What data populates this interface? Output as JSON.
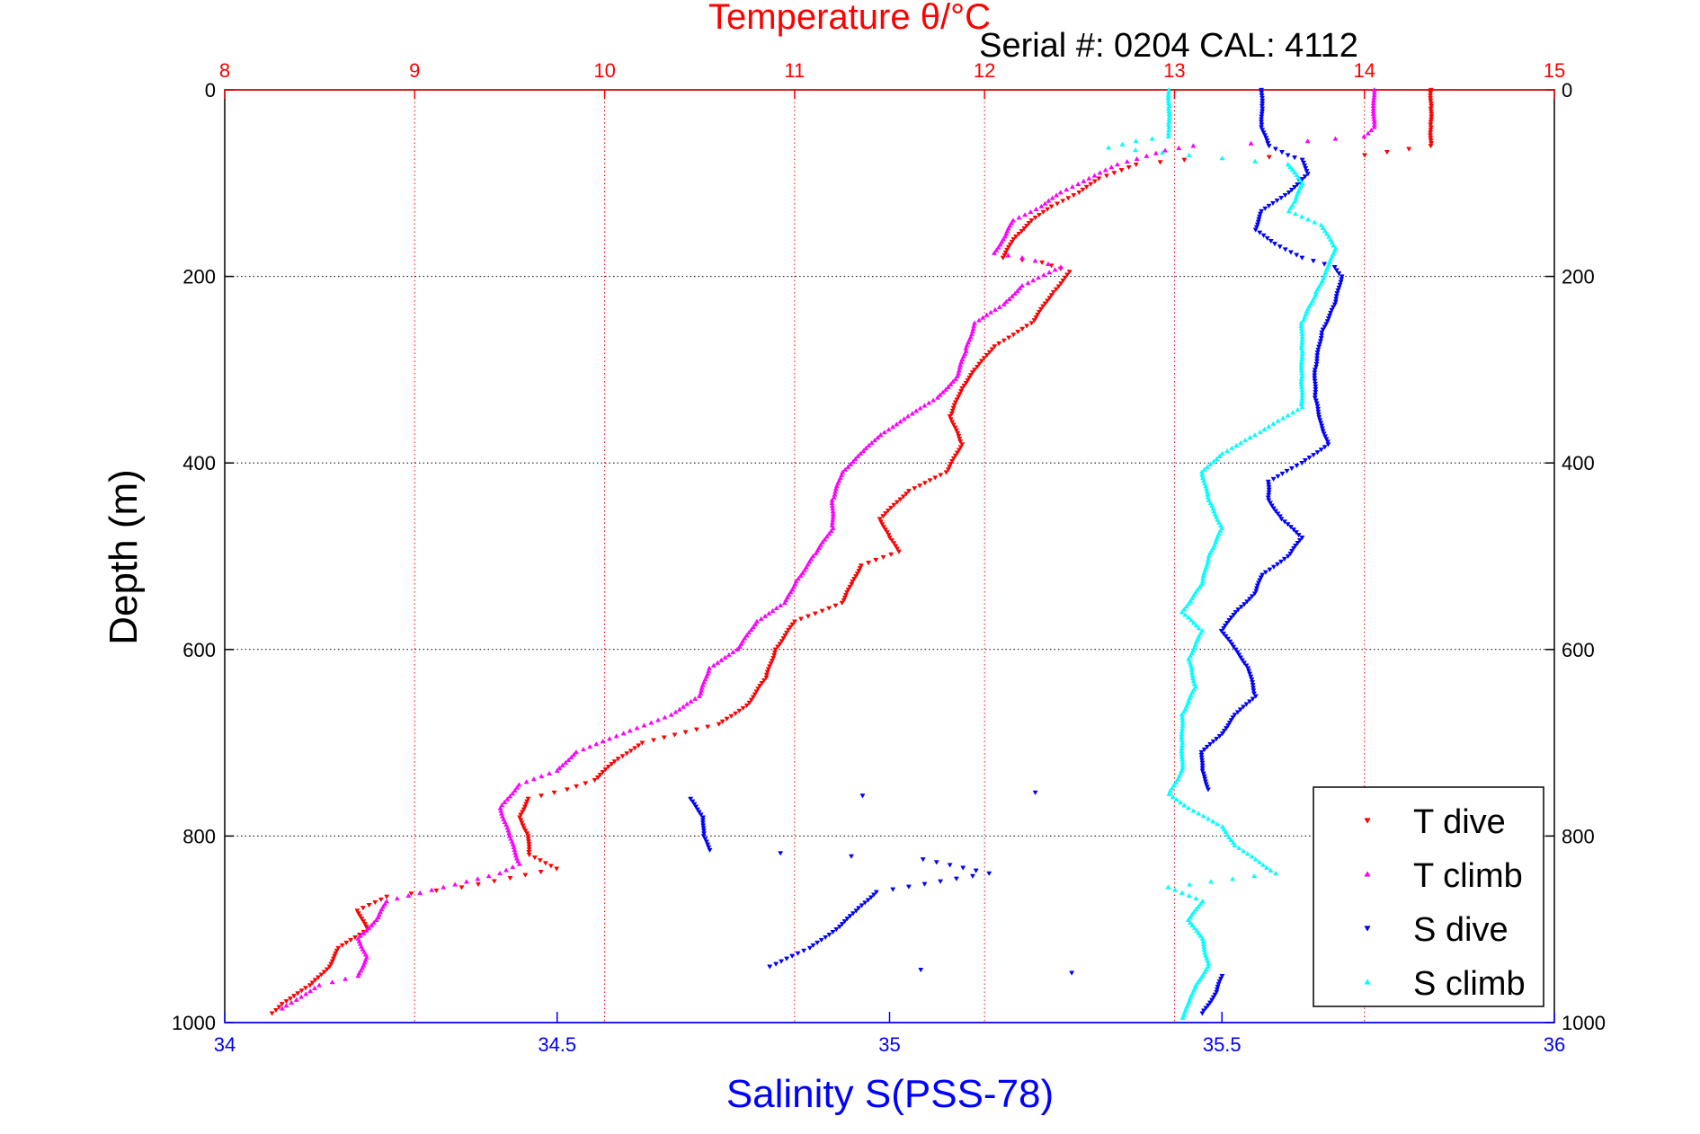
{
  "chart_data": {
    "type": "scatter",
    "title": "Temperature θ/°C",
    "subtitle": "Serial #: 0204  CAL: 4112",
    "xlabel": "Salinity S(PSS-78)",
    "ylabel": "Depth (m)",
    "top_axis": {
      "label": "Temperature θ/°C",
      "range": [
        8,
        15
      ],
      "ticks": [
        "8",
        "9",
        "10",
        "11",
        "12",
        "13",
        "14",
        "15"
      ],
      "color": "#ff0000"
    },
    "bottom_axis": {
      "label": "Salinity S(PSS-78)",
      "range": [
        34,
        36
      ],
      "ticks": [
        "34",
        "34.5",
        "35",
        "35.5",
        "36"
      ],
      "color": "#0000ff"
    },
    "y_axis": {
      "range": [
        0,
        1000
      ],
      "inverted": true,
      "ticks": [
        "0",
        "200",
        "400",
        "600",
        "800",
        "1000"
      ]
    },
    "grid": true,
    "legend_position": "bottom-right",
    "series": [
      {
        "name": "T dive",
        "axis": "temperature",
        "color": "#ff0000",
        "marker": "triangle-down",
        "points": [
          [
            14.35,
            0
          ],
          [
            14.35,
            20
          ],
          [
            14.35,
            40
          ],
          [
            14.35,
            60
          ],
          [
            14.0,
            70
          ],
          [
            13.5,
            72
          ],
          [
            13.05,
            75
          ],
          [
            12.8,
            80
          ],
          [
            12.6,
            95
          ],
          [
            12.5,
            110
          ],
          [
            12.35,
            125
          ],
          [
            12.25,
            140
          ],
          [
            12.15,
            160
          ],
          [
            12.1,
            180
          ],
          [
            12.3,
            185
          ],
          [
            12.45,
            195
          ],
          [
            12.35,
            220
          ],
          [
            12.25,
            250
          ],
          [
            12.05,
            275
          ],
          [
            11.95,
            300
          ],
          [
            11.88,
            320
          ],
          [
            11.82,
            350
          ],
          [
            11.88,
            380
          ],
          [
            11.8,
            410
          ],
          [
            11.6,
            430
          ],
          [
            11.45,
            460
          ],
          [
            11.5,
            480
          ],
          [
            11.55,
            495
          ],
          [
            11.35,
            510
          ],
          [
            11.3,
            530
          ],
          [
            11.25,
            550
          ],
          [
            11.0,
            570
          ],
          [
            10.9,
            600
          ],
          [
            10.85,
            630
          ],
          [
            10.75,
            660
          ],
          [
            10.6,
            680
          ],
          [
            10.2,
            700
          ],
          [
            10.05,
            720
          ],
          [
            9.95,
            740
          ],
          [
            9.8,
            750
          ],
          [
            9.6,
            760
          ],
          [
            9.55,
            780
          ],
          [
            9.6,
            800
          ],
          [
            9.6,
            820
          ],
          [
            9.75,
            835
          ],
          [
            9.5,
            845
          ],
          [
            9.25,
            855
          ],
          [
            8.85,
            865
          ],
          [
            8.7,
            880
          ],
          [
            8.75,
            900
          ],
          [
            8.6,
            920
          ],
          [
            8.55,
            940
          ],
          [
            8.45,
            960
          ],
          [
            8.3,
            980
          ],
          [
            8.25,
            990
          ]
        ]
      },
      {
        "name": "T climb",
        "axis": "temperature",
        "color": "#ff00ff",
        "marker": "triangle-up",
        "points": [
          [
            14.05,
            0
          ],
          [
            14.05,
            20
          ],
          [
            14.05,
            40
          ],
          [
            14.0,
            50
          ],
          [
            13.7,
            55
          ],
          [
            13.1,
            60
          ],
          [
            12.95,
            65
          ],
          [
            12.7,
            80
          ],
          [
            12.55,
            95
          ],
          [
            12.4,
            110
          ],
          [
            12.3,
            125
          ],
          [
            12.15,
            140
          ],
          [
            12.1,
            160
          ],
          [
            12.05,
            175
          ],
          [
            12.2,
            180
          ],
          [
            12.4,
            190
          ],
          [
            12.2,
            210
          ],
          [
            12.1,
            230
          ],
          [
            11.95,
            250
          ],
          [
            11.9,
            280
          ],
          [
            11.85,
            310
          ],
          [
            11.75,
            330
          ],
          [
            11.6,
            350
          ],
          [
            11.45,
            370
          ],
          [
            11.35,
            390
          ],
          [
            11.25,
            410
          ],
          [
            11.2,
            440
          ],
          [
            11.2,
            470
          ],
          [
            11.1,
            500
          ],
          [
            11.0,
            530
          ],
          [
            10.95,
            550
          ],
          [
            10.8,
            570
          ],
          [
            10.7,
            600
          ],
          [
            10.55,
            620
          ],
          [
            10.5,
            650
          ],
          [
            10.35,
            670
          ],
          [
            10.1,
            690
          ],
          [
            9.85,
            710
          ],
          [
            9.75,
            730
          ],
          [
            9.55,
            745
          ],
          [
            9.45,
            770
          ],
          [
            9.5,
            800
          ],
          [
            9.55,
            830
          ],
          [
            9.45,
            840
          ],
          [
            8.85,
            870
          ],
          [
            8.8,
            890
          ],
          [
            8.7,
            910
          ],
          [
            8.75,
            930
          ],
          [
            8.7,
            950
          ],
          [
            8.5,
            960
          ],
          [
            8.3,
            985
          ]
        ]
      },
      {
        "name": "S dive",
        "axis": "salinity",
        "color": "#0000ff",
        "marker": "triangle-down",
        "points": [
          [
            35.56,
            0
          ],
          [
            35.56,
            20
          ],
          [
            35.56,
            40
          ],
          [
            35.57,
            60
          ],
          [
            35.6,
            70
          ],
          [
            35.62,
            75
          ],
          [
            35.63,
            90
          ],
          [
            35.6,
            110
          ],
          [
            35.56,
            130
          ],
          [
            35.55,
            150
          ],
          [
            35.58,
            165
          ],
          [
            35.62,
            180
          ],
          [
            35.67,
            190
          ],
          [
            35.68,
            200
          ],
          [
            35.67,
            230
          ],
          [
            35.65,
            260
          ],
          [
            35.64,
            300
          ],
          [
            35.64,
            330
          ],
          [
            35.65,
            360
          ],
          [
            35.66,
            380
          ],
          [
            35.62,
            400
          ],
          [
            35.57,
            420
          ],
          [
            35.57,
            440
          ],
          [
            35.59,
            460
          ],
          [
            35.62,
            480
          ],
          [
            35.6,
            500
          ],
          [
            35.56,
            520
          ],
          [
            35.55,
            540
          ],
          [
            35.52,
            560
          ],
          [
            35.5,
            580
          ],
          [
            35.52,
            600
          ],
          [
            35.54,
            620
          ],
          [
            35.55,
            650
          ],
          [
            35.52,
            670
          ],
          [
            35.5,
            690
          ],
          [
            35.47,
            710
          ],
          [
            35.47,
            730
          ],
          [
            35.48,
            750
          ],
          [
            34.7,
            760
          ],
          [
            34.72,
            780
          ],
          [
            34.72,
            800
          ],
          [
            34.73,
            815
          ],
          [
            35.05,
            825
          ],
          [
            35.15,
            840
          ],
          [
            34.98,
            860
          ],
          [
            34.95,
            880
          ],
          [
            34.92,
            900
          ],
          [
            34.88,
            920
          ],
          [
            34.82,
            940
          ],
          [
            35.5,
            950
          ],
          [
            35.49,
            970
          ],
          [
            35.47,
            990
          ]
        ]
      },
      {
        "name": "S climb",
        "axis": "salinity",
        "color": "#00ffff",
        "marker": "triangle-up",
        "points": [
          [
            35.42,
            0
          ],
          [
            35.42,
            20
          ],
          [
            35.42,
            40
          ],
          [
            35.42,
            50
          ],
          [
            35.37,
            55
          ],
          [
            35.33,
            62
          ],
          [
            35.45,
            70
          ],
          [
            35.6,
            80
          ],
          [
            35.62,
            100
          ],
          [
            35.61,
            120
          ],
          [
            35.6,
            130
          ],
          [
            35.65,
            145
          ],
          [
            35.67,
            170
          ],
          [
            35.66,
            190
          ],
          [
            35.64,
            220
          ],
          [
            35.62,
            250
          ],
          [
            35.62,
            280
          ],
          [
            35.62,
            310
          ],
          [
            35.62,
            340
          ],
          [
            35.55,
            370
          ],
          [
            35.5,
            390
          ],
          [
            35.47,
            410
          ],
          [
            35.48,
            440
          ],
          [
            35.5,
            470
          ],
          [
            35.48,
            500
          ],
          [
            35.47,
            530
          ],
          [
            35.44,
            560
          ],
          [
            35.47,
            580
          ],
          [
            35.45,
            610
          ],
          [
            35.46,
            640
          ],
          [
            35.44,
            670
          ],
          [
            35.44,
            700
          ],
          [
            35.44,
            730
          ],
          [
            35.42,
            755
          ],
          [
            35.45,
            770
          ],
          [
            35.5,
            790
          ],
          [
            35.52,
            810
          ],
          [
            35.58,
            840
          ],
          [
            35.42,
            855
          ],
          [
            35.47,
            870
          ],
          [
            35.45,
            890
          ],
          [
            35.47,
            910
          ],
          [
            35.48,
            940
          ],
          [
            35.46,
            960
          ],
          [
            35.45,
            980
          ],
          [
            35.44,
            995
          ]
        ]
      }
    ]
  }
}
